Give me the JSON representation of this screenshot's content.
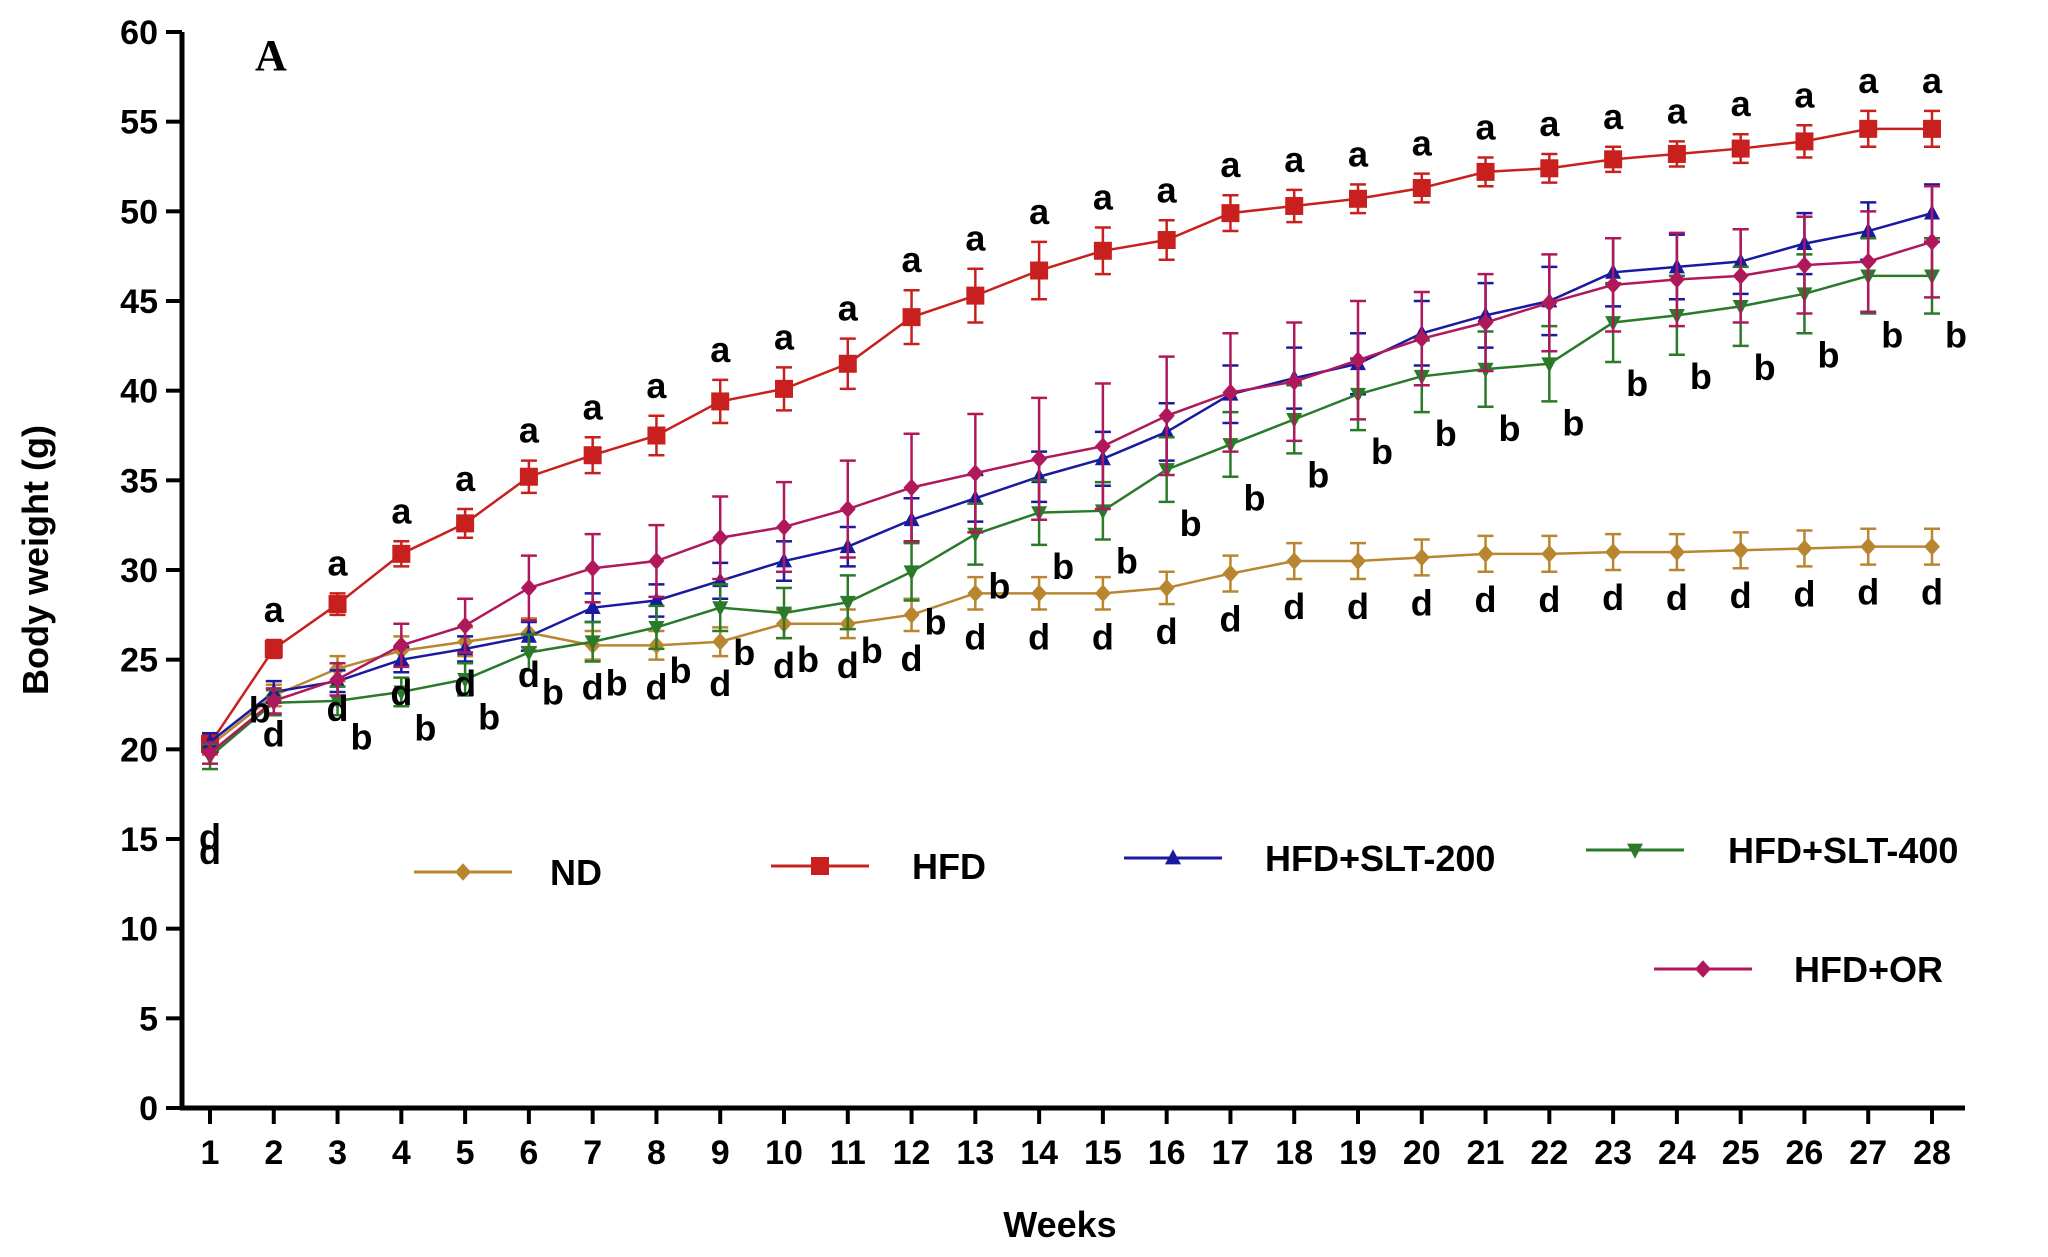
{
  "chart_data": {
    "type": "line",
    "panel_label": "A",
    "title": "",
    "xlabel": "Weeks",
    "ylabel": "Body weight (g)",
    "ylim": [
      0,
      60
    ],
    "yticks": [
      0,
      5,
      10,
      15,
      20,
      25,
      30,
      35,
      40,
      45,
      50,
      55,
      60
    ],
    "x": [
      1,
      2,
      3,
      4,
      5,
      6,
      7,
      8,
      9,
      10,
      11,
      12,
      13,
      14,
      15,
      16,
      17,
      18,
      19,
      20,
      21,
      22,
      23,
      24,
      25,
      26,
      27,
      28
    ],
    "grid": false,
    "series": [
      {
        "name": "ND",
        "color": "#b8862e",
        "marker": "diamond",
        "values": [
          20.2,
          23.0,
          24.5,
          25.5,
          26.0,
          26.5,
          25.8,
          25.8,
          26.0,
          27.0,
          27.0,
          27.5,
          28.7,
          28.7,
          28.7,
          29.0,
          29.8,
          30.5,
          30.5,
          30.7,
          30.9,
          30.9,
          31.0,
          31.0,
          31.1,
          31.2,
          31.3,
          31.3
        ],
        "errors": [
          0.5,
          0.6,
          0.7,
          0.8,
          0.8,
          0.8,
          0.8,
          0.8,
          0.8,
          0.8,
          0.8,
          0.9,
          0.9,
          0.9,
          0.9,
          0.9,
          1.0,
          1.0,
          1.0,
          1.0,
          1.0,
          1.0,
          1.0,
          1.0,
          1.0,
          1.0,
          1.0,
          1.0
        ],
        "letters": [
          "d",
          "d",
          "d",
          "d",
          "d",
          "d",
          "d",
          "d",
          "d",
          "d",
          "d",
          "d",
          "d",
          "d",
          "d",
          "d",
          "d",
          "d",
          "d",
          "d",
          "d",
          "d",
          "d",
          "d",
          "d",
          "d",
          "d",
          "d"
        ]
      },
      {
        "name": "HFD",
        "color": "#c8201e",
        "marker": "square",
        "values": [
          20.3,
          25.6,
          28.1,
          30.9,
          32.6,
          35.2,
          36.4,
          37.5,
          39.4,
          40.1,
          41.5,
          44.1,
          45.3,
          46.7,
          47.8,
          48.4,
          49.9,
          50.3,
          50.7,
          51.3,
          52.2,
          52.4,
          52.9,
          53.2,
          53.5,
          53.9,
          54.6,
          54.6
        ],
        "errors": [
          0.5,
          0.5,
          0.6,
          0.7,
          0.8,
          0.9,
          1.0,
          1.1,
          1.2,
          1.2,
          1.4,
          1.5,
          1.5,
          1.6,
          1.3,
          1.1,
          1.0,
          0.9,
          0.8,
          0.8,
          0.8,
          0.8,
          0.7,
          0.7,
          0.8,
          0.9,
          1.0,
          1.0
        ],
        "letters": [
          "",
          "a",
          "a",
          "a",
          "a",
          "a",
          "a",
          "a",
          "a",
          "a",
          "a",
          "a",
          "a",
          "a",
          "a",
          "a",
          "a",
          "a",
          "a",
          "a",
          "a",
          "a",
          "a",
          "a",
          "a",
          "a",
          "a",
          "a"
        ]
      },
      {
        "name": "HFD+SLT-200",
        "color": "#1a1aa0",
        "marker": "triangle-up",
        "values": [
          20.4,
          23.2,
          23.8,
          25.0,
          25.6,
          26.3,
          27.9,
          28.3,
          29.4,
          30.5,
          31.3,
          32.8,
          34.0,
          35.2,
          36.2,
          37.7,
          39.8,
          40.7,
          41.5,
          43.2,
          44.2,
          45.0,
          46.6,
          46.9,
          47.2,
          48.2,
          48.9,
          49.9
        ],
        "errors": [
          0.5,
          0.6,
          0.6,
          0.7,
          0.7,
          0.8,
          0.8,
          0.9,
          1.0,
          1.1,
          1.1,
          1.2,
          1.3,
          1.4,
          1.5,
          1.6,
          1.6,
          1.7,
          1.7,
          1.8,
          1.8,
          1.9,
          1.9,
          1.8,
          1.8,
          1.7,
          1.6,
          1.6
        ],
        "letters": []
      },
      {
        "name": "HFD+SLT-400",
        "color": "#2a7a2a",
        "marker": "triangle-down",
        "values": [
          19.6,
          22.6,
          22.7,
          23.2,
          23.9,
          25.4,
          26.0,
          26.8,
          27.9,
          27.6,
          28.2,
          29.9,
          32.0,
          33.2,
          33.3,
          35.6,
          37.0,
          38.4,
          39.8,
          40.8,
          41.2,
          41.5,
          43.8,
          44.2,
          44.7,
          45.4,
          46.4,
          46.4
        ],
        "errors": [
          0.7,
          0.7,
          0.8,
          0.8,
          0.9,
          1.0,
          1.1,
          1.2,
          1.3,
          1.4,
          1.5,
          1.6,
          1.7,
          1.8,
          1.6,
          1.8,
          1.8,
          1.9,
          2.0,
          2.0,
          2.1,
          2.1,
          2.2,
          2.2,
          2.2,
          2.2,
          2.1,
          2.1
        ],
        "letters": [
          "d",
          "b",
          "b",
          "b",
          "b",
          "b",
          "b",
          "b",
          "b",
          "b",
          "b",
          "b",
          "b",
          "b",
          "b",
          "b",
          "b",
          "b",
          "b",
          "b",
          "b",
          "b",
          "b",
          "b",
          "b",
          "b",
          "b",
          "b"
        ]
      },
      {
        "name": "HFD+OR",
        "color": "#b0185c",
        "marker": "diamond",
        "values": [
          19.8,
          22.7,
          23.9,
          25.8,
          26.9,
          29.0,
          30.1,
          30.5,
          31.8,
          32.4,
          33.4,
          34.6,
          35.4,
          36.2,
          36.9,
          38.6,
          39.9,
          40.5,
          41.7,
          42.9,
          43.8,
          44.9,
          45.9,
          46.2,
          46.4,
          47.0,
          47.2,
          48.3
        ],
        "errors": [
          0.6,
          0.7,
          0.9,
          1.2,
          1.5,
          1.8,
          1.9,
          2.0,
          2.3,
          2.5,
          2.7,
          3.0,
          3.3,
          3.4,
          3.5,
          3.3,
          3.3,
          3.3,
          3.3,
          2.6,
          2.7,
          2.7,
          2.6,
          2.6,
          2.6,
          2.7,
          2.8,
          3.1
        ],
        "letters": []
      }
    ],
    "legend_placement": "center-bottom"
  }
}
